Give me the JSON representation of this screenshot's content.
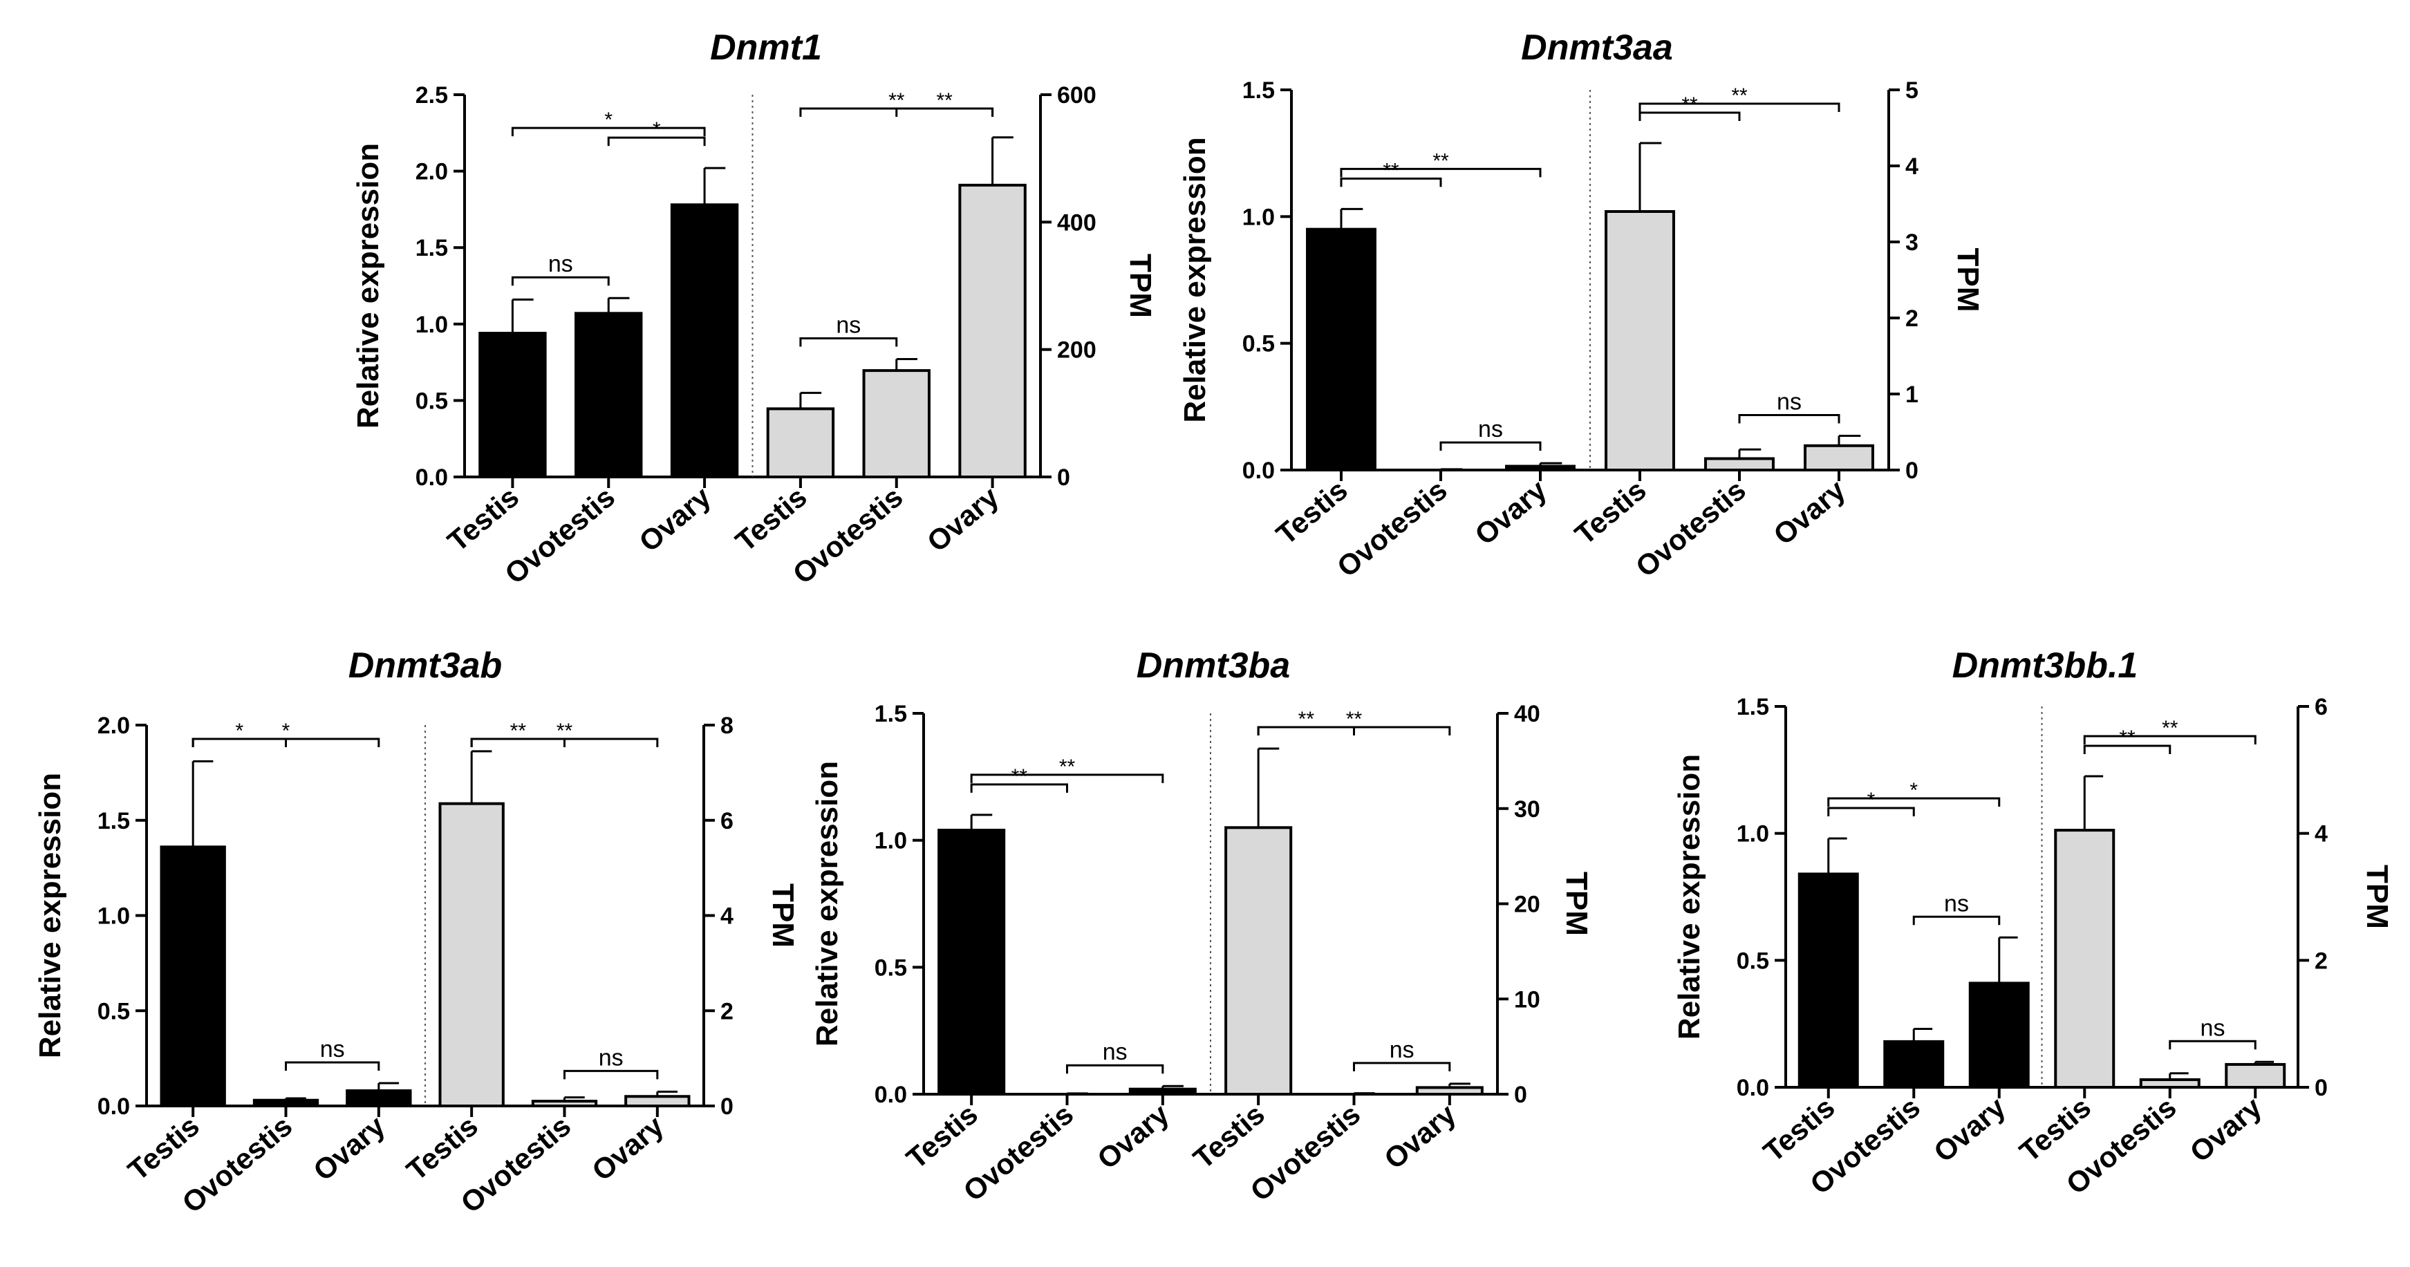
{
  "figure": {
    "colors": {
      "left_bar": "#000000",
      "right_bar": "#d9d9d9",
      "axis": "#000000"
    }
  },
  "chart_data": [
    {
      "type": "bar",
      "title": "Dnmt1",
      "left_axis": {
        "label": "Relative expression",
        "ylim": [
          0,
          2.5
        ],
        "ticks": [
          "0.0",
          "0.5",
          "1.0",
          "1.5",
          "2.0",
          "2.5"
        ]
      },
      "right_axis": {
        "label": "TPM",
        "ylim": [
          0,
          600
        ],
        "ticks": [
          "0",
          "200",
          "400",
          "600"
        ]
      },
      "categories": [
        "Testis",
        "Ovotestis",
        "Ovary"
      ],
      "series": [
        {
          "name": "Relative expression",
          "axis": "left",
          "values": [
            0.94,
            1.07,
            1.78
          ],
          "errors": [
            0.22,
            0.1,
            0.24
          ]
        },
        {
          "name": "TPM",
          "axis": "right",
          "values": [
            107,
            167,
            458
          ],
          "errors": [
            25,
            18,
            75
          ]
        }
      ],
      "annotations": [
        {
          "axis": "left",
          "from": 0,
          "to": 1,
          "label": "ns"
        },
        {
          "axis": "left",
          "from": 1,
          "to": 2,
          "label": "*"
        },
        {
          "axis": "left",
          "from": 0,
          "to": 2,
          "label": "*"
        },
        {
          "axis": "right",
          "from": 0,
          "to": 1,
          "label": "ns"
        },
        {
          "axis": "right",
          "from": 1,
          "to": 2,
          "label": "**"
        },
        {
          "axis": "right",
          "from": 0,
          "to": 2,
          "label": "**"
        }
      ]
    },
    {
      "type": "bar",
      "title": "Dnmt3aa",
      "left_axis": {
        "label": "Relative expression",
        "ylim": [
          0,
          1.5
        ],
        "ticks": [
          "0.0",
          "0.5",
          "1.0",
          "1.5"
        ]
      },
      "right_axis": {
        "label": "TPM",
        "ylim": [
          0,
          5
        ],
        "ticks": [
          "0",
          "1",
          "2",
          "3",
          "4",
          "5"
        ]
      },
      "categories": [
        "Testis",
        "Ovotestis",
        "Ovary"
      ],
      "series": [
        {
          "name": "Relative expression",
          "axis": "left",
          "values": [
            0.95,
            0.0,
            0.015
          ],
          "errors": [
            0.08,
            0.003,
            0.012
          ]
        },
        {
          "name": "TPM",
          "axis": "right",
          "values": [
            3.4,
            0.15,
            0.32
          ],
          "errors": [
            0.9,
            0.12,
            0.13
          ]
        }
      ],
      "annotations": [
        {
          "axis": "left",
          "from": 1,
          "to": 2,
          "label": "ns"
        },
        {
          "axis": "left",
          "from": 0,
          "to": 1,
          "label": "**"
        },
        {
          "axis": "left",
          "from": 0,
          "to": 2,
          "label": "**"
        },
        {
          "axis": "right",
          "from": 1,
          "to": 2,
          "label": "ns"
        },
        {
          "axis": "right",
          "from": 0,
          "to": 1,
          "label": "**"
        },
        {
          "axis": "right",
          "from": 0,
          "to": 2,
          "label": "**"
        }
      ]
    },
    {
      "type": "bar",
      "title": "Dnmt3ab",
      "left_axis": {
        "label": "Relative expression",
        "ylim": [
          0,
          2.0
        ],
        "ticks": [
          "0.0",
          "0.5",
          "1.0",
          "1.5",
          "2.0"
        ]
      },
      "right_axis": {
        "label": "TPM",
        "ylim": [
          0,
          8
        ],
        "ticks": [
          "0",
          "2",
          "4",
          "6",
          "8"
        ]
      },
      "categories": [
        "Testis",
        "Ovotestis",
        "Ovary"
      ],
      "series": [
        {
          "name": "Relative expression",
          "axis": "left",
          "values": [
            1.36,
            0.03,
            0.08
          ],
          "errors": [
            0.45,
            0.01,
            0.04
          ]
        },
        {
          "name": "TPM",
          "axis": "right",
          "values": [
            6.35,
            0.1,
            0.2
          ],
          "errors": [
            1.1,
            0.08,
            0.1
          ]
        }
      ],
      "annotations": [
        {
          "axis": "left",
          "from": 1,
          "to": 2,
          "label": "ns"
        },
        {
          "axis": "left",
          "from": 0,
          "to": 1,
          "label": "*"
        },
        {
          "axis": "left",
          "from": 0,
          "to": 2,
          "label": "*"
        },
        {
          "axis": "right",
          "from": 1,
          "to": 2,
          "label": "ns"
        },
        {
          "axis": "right",
          "from": 0,
          "to": 1,
          "label": "**"
        },
        {
          "axis": "right",
          "from": 0,
          "to": 2,
          "label": "**"
        }
      ]
    },
    {
      "type": "bar",
      "title": "Dnmt3ba",
      "left_axis": {
        "label": "Relative expression",
        "ylim": [
          0,
          1.5
        ],
        "ticks": [
          "0.0",
          "0.5",
          "1.0",
          "1.5"
        ]
      },
      "right_axis": {
        "label": "TPM",
        "ylim": [
          0,
          40
        ],
        "ticks": [
          "0",
          "10",
          "20",
          "30",
          "40"
        ]
      },
      "categories": [
        "Testis",
        "Ovotestis",
        "Ovary"
      ],
      "series": [
        {
          "name": "Relative expression",
          "axis": "left",
          "values": [
            1.04,
            0.0,
            0.02
          ],
          "errors": [
            0.06,
            0.003,
            0.012
          ]
        },
        {
          "name": "TPM",
          "axis": "right",
          "values": [
            28,
            0.0,
            0.7
          ],
          "errors": [
            8.3,
            0.1,
            0.4
          ]
        }
      ],
      "annotations": [
        {
          "axis": "left",
          "from": 1,
          "to": 2,
          "label": "ns"
        },
        {
          "axis": "left",
          "from": 0,
          "to": 1,
          "label": "**"
        },
        {
          "axis": "left",
          "from": 0,
          "to": 2,
          "label": "**"
        },
        {
          "axis": "right",
          "from": 1,
          "to": 2,
          "label": "ns"
        },
        {
          "axis": "right",
          "from": 0,
          "to": 1,
          "label": "**"
        },
        {
          "axis": "right",
          "from": 0,
          "to": 2,
          "label": "**"
        }
      ]
    },
    {
      "type": "bar",
      "title": "Dnmt3bb.1",
      "left_axis": {
        "label": "Relative expression",
        "ylim": [
          0,
          1.5
        ],
        "ticks": [
          "0.0",
          "0.5",
          "1.0",
          "1.5"
        ]
      },
      "right_axis": {
        "label": "TPM",
        "ylim": [
          0,
          6
        ],
        "ticks": [
          "0",
          "2",
          "4",
          "6"
        ]
      },
      "categories": [
        "Testis",
        "Ovotestis",
        "Ovary"
      ],
      "series": [
        {
          "name": "Relative expression",
          "axis": "left",
          "values": [
            0.84,
            0.18,
            0.41
          ],
          "errors": [
            0.14,
            0.05,
            0.18
          ]
        },
        {
          "name": "TPM",
          "axis": "right",
          "values": [
            4.05,
            0.12,
            0.36
          ],
          "errors": [
            0.85,
            0.1,
            0.04
          ]
        }
      ],
      "annotations": [
        {
          "axis": "left",
          "from": 1,
          "to": 2,
          "label": "ns"
        },
        {
          "axis": "left",
          "from": 0,
          "to": 1,
          "label": "*"
        },
        {
          "axis": "left",
          "from": 0,
          "to": 2,
          "label": "*"
        },
        {
          "axis": "right",
          "from": 1,
          "to": 2,
          "label": "ns"
        },
        {
          "axis": "right",
          "from": 0,
          "to": 1,
          "label": "**"
        },
        {
          "axis": "right",
          "from": 0,
          "to": 2,
          "label": "**"
        }
      ]
    }
  ]
}
